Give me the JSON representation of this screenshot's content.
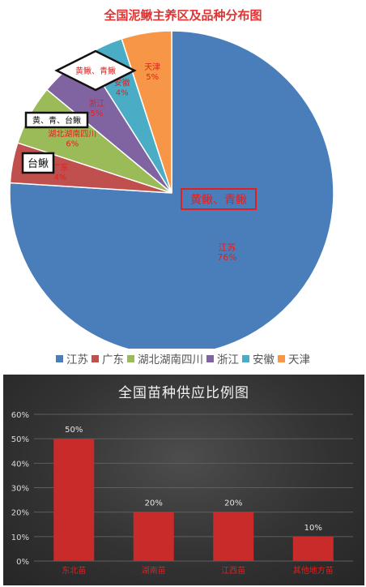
{
  "pie_chart": {
    "title": "全国泥鳅主养区及品种分布图",
    "chart_data": {
      "type": "pie",
      "title": "全国泥鳅主养区及品种分布图",
      "slices": [
        {
          "name": "江苏",
          "value": 76,
          "label": "76%",
          "color": "#4a7ebb"
        },
        {
          "name": "广东",
          "value": 4,
          "label": "4%",
          "color": "#c0504d"
        },
        {
          "name": "湖北湖南四川",
          "value": 6,
          "label": "6%",
          "color": "#9bbb59"
        },
        {
          "name": "浙江",
          "value": 5,
          "label": "5%",
          "color": "#8064a2"
        },
        {
          "name": "安徽",
          "value": 4,
          "label": "4%",
          "color": "#4bacc6"
        },
        {
          "name": "天津",
          "value": 5,
          "label": "5%",
          "color": "#f79646"
        }
      ],
      "legend_position": "bottom"
    },
    "annotations": {
      "jiangsu": "黄鳅、青鳅",
      "tianjin_anhui": "黄鳅、青鳅",
      "hubei_hunan_sichuan": "黄、青、台鳅",
      "guangdong": "台鳅"
    }
  },
  "bar_chart": {
    "title": "全国苗种供应比例图",
    "chart_data": {
      "type": "bar",
      "title": "全国苗种供应比例图",
      "categories": [
        "东北苗",
        "湖南苗",
        "江西苗",
        "其他地方苗"
      ],
      "values": [
        50,
        20,
        20,
        10
      ],
      "value_labels": [
        "50%",
        "20%",
        "20%",
        "10%"
      ],
      "y_ticks": [
        "0%",
        "10%",
        "20%",
        "30%",
        "40%",
        "50%",
        "60%"
      ],
      "ylim": [
        0,
        60
      ],
      "bar_color": "#c92a2a"
    }
  }
}
